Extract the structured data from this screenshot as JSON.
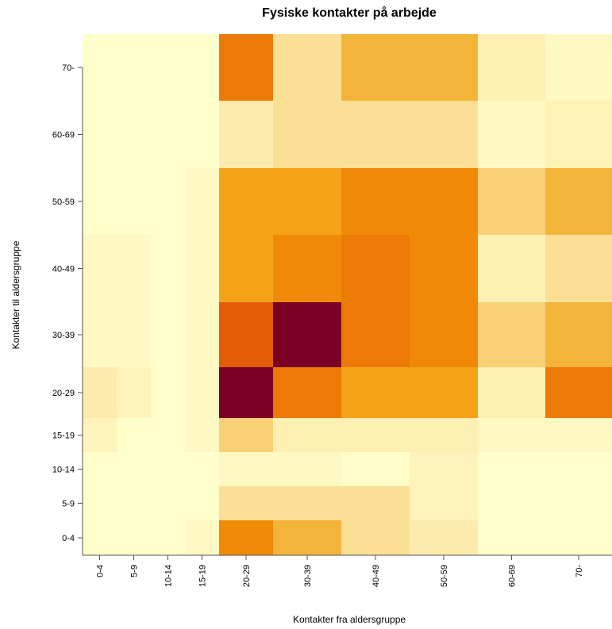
{
  "chart_data": {
    "type": "heatmap",
    "title": "Fysiske kontakter på arbejde",
    "xlabel": "Kontakter fra aldersgruppe",
    "ylabel": "Kontakter til aldersgruppe",
    "x_categories": [
      "0-4",
      "5-9",
      "10-14",
      "15-19",
      "20-29",
      "30-39",
      "40-49",
      "50-59",
      "60-69",
      "70-"
    ],
    "y_categories": [
      "0-4",
      "5-9",
      "10-14",
      "15-19",
      "20-29",
      "30-39",
      "40-49",
      "50-59",
      "60-69",
      "70-"
    ],
    "values": [
      [
        0.0,
        0.0,
        0.0,
        0.05,
        0.55,
        0.35,
        0.2,
        0.15,
        0.0,
        0.0
      ],
      [
        0.0,
        0.0,
        0.0,
        0.0,
        0.2,
        0.2,
        0.2,
        0.08,
        0.0,
        0.0
      ],
      [
        0.0,
        0.0,
        0.0,
        0.0,
        0.05,
        0.05,
        0.01,
        0.08,
        0.0,
        0.0
      ],
      [
        0.08,
        0.0,
        0.0,
        0.05,
        0.25,
        0.12,
        0.12,
        0.12,
        0.05,
        0.05
      ],
      [
        0.15,
        0.08,
        0.0,
        0.05,
        1.0,
        0.6,
        0.45,
        0.45,
        0.12,
        0.6
      ],
      [
        0.05,
        0.05,
        0.0,
        0.05,
        0.7,
        1.0,
        0.6,
        0.55,
        0.25,
        0.35
      ],
      [
        0.05,
        0.05,
        0.0,
        0.05,
        0.45,
        0.55,
        0.6,
        0.55,
        0.12,
        0.2
      ],
      [
        0.0,
        0.0,
        0.0,
        0.05,
        0.45,
        0.45,
        0.55,
        0.55,
        0.25,
        0.35
      ],
      [
        0.0,
        0.0,
        0.0,
        0.0,
        0.15,
        0.2,
        0.2,
        0.2,
        0.05,
        0.1
      ],
      [
        0.0,
        0.0,
        0.0,
        0.0,
        0.6,
        0.2,
        0.35,
        0.35,
        0.12,
        0.05
      ]
    ],
    "value_range": [
      0,
      1
    ],
    "colormap": [
      "#ffffcc",
      "#fde9a9",
      "#f4b740",
      "#f49a06",
      "#e86407",
      "#d63d06",
      "#7a0025"
    ],
    "grid": false,
    "legend": "none"
  }
}
